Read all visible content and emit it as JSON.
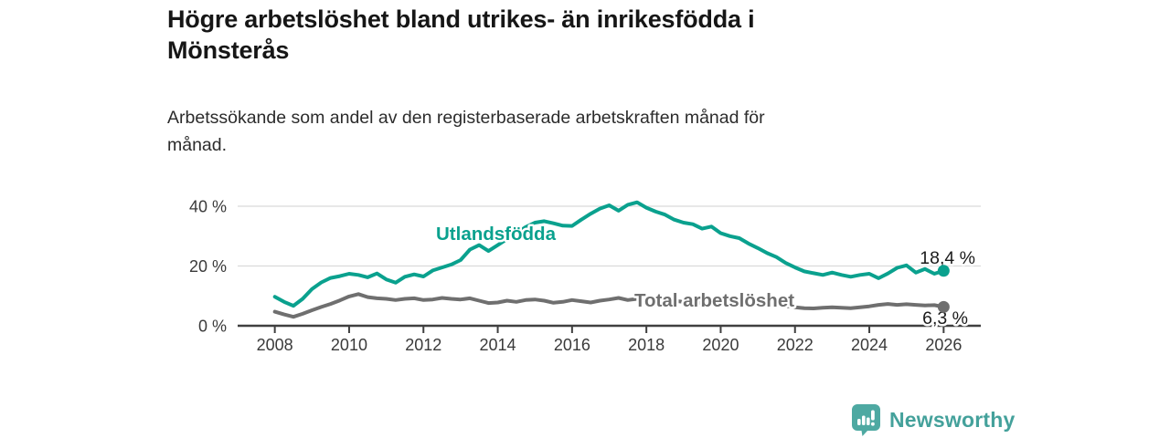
{
  "header": {
    "title": "Högre arbetslöshet bland utrikes- än inrikesfödda i Mönsterås",
    "title_lines": [
      "Högre arbetslöshet bland utrikes- än inrikesfödda i",
      "Mönsterås"
    ],
    "subtitle": "Arbetssökande som andel av den registerbaserade arbetskraften månad för månad.",
    "subtitle_lines": [
      "Arbetssökande som andel av den registerbaserade arbetskraften månad för",
      "månad."
    ]
  },
  "footer": {
    "brand": "Newsworthy",
    "logo_icon": "bar-chart-speech-bubble-icon",
    "logo_color": "#4ea9a2"
  },
  "colors": {
    "background": "#ffffff",
    "title_text": "#161616",
    "subtitle_text": "#2c2c2c",
    "axis_text": "#3a3a3a",
    "axis_line": "#3f3f3f",
    "gridline": "#dadada",
    "value_label_text": "#1b1b1b",
    "series_teal": "#0aa18e",
    "series_gray": "#6f6f6f"
  },
  "chart_data": {
    "type": "line",
    "title": "Högre arbetslöshet bland utrikes- än inrikesfödda i Mönsterås",
    "subtitle": "Arbetssökande som andel av den registerbaserade arbetskraften månad för månad.",
    "xlabel": "",
    "ylabel": "",
    "unit": "%",
    "xlim": [
      2007,
      2027
    ],
    "ylim": [
      0,
      44
    ],
    "grid": "horizontal gridlines at y ticks above 0; solid baseline axis at 0",
    "legend_position": "inline labels on lines",
    "x_ticks": [
      {
        "value": 2008,
        "label": "2008"
      },
      {
        "value": 2010,
        "label": "2010"
      },
      {
        "value": 2012,
        "label": "2012"
      },
      {
        "value": 2014,
        "label": "2014"
      },
      {
        "value": 2016,
        "label": "2016"
      },
      {
        "value": 2018,
        "label": "2018"
      },
      {
        "value": 2020,
        "label": "2020"
      },
      {
        "value": 2022,
        "label": "2022"
      },
      {
        "value": 2024,
        "label": "2024"
      },
      {
        "value": 2026,
        "label": "2026"
      }
    ],
    "y_ticks": [
      {
        "value": 0,
        "label": "0 %"
      },
      {
        "value": 20,
        "label": "20 %"
      },
      {
        "value": 40,
        "label": "40 %"
      }
    ],
    "x_start": 2008,
    "x_step": 0.25,
    "x_end": 2026,
    "x_note": "decimal years, quarterly estimates read from monthly curve",
    "series": [
      {
        "name": "Utlandsfödda",
        "color": "#0aa18e",
        "end_value": 18.4,
        "end_label": "18,4 %",
        "values": [
          9.7,
          8.0,
          6.7,
          9.0,
          12.3,
          14.5,
          16.0,
          16.6,
          17.4,
          17.0,
          16.2,
          17.5,
          15.5,
          14.4,
          16.4,
          17.2,
          16.5,
          18.5,
          19.5,
          20.5,
          22.0,
          25.5,
          27.0,
          25.0,
          27.0,
          29.0,
          31.0,
          33.0,
          34.5,
          35.0,
          34.3,
          33.5,
          33.4,
          35.5,
          37.5,
          39.2,
          40.3,
          38.5,
          40.5,
          41.3,
          39.5,
          38.2,
          37.2,
          35.5,
          34.5,
          34.0,
          32.5,
          33.2,
          31.0,
          30.0,
          29.3,
          27.5,
          26.0,
          24.3,
          23.0,
          21.0,
          19.5,
          18.2,
          17.6,
          17.0,
          17.8,
          17.0,
          16.4,
          17.0,
          17.4,
          15.9,
          17.5,
          19.4,
          20.2,
          17.8,
          19.0,
          17.4,
          18.4
        ]
      },
      {
        "name": "Total arbetslöshet",
        "color": "#6f6f6f",
        "end_value": 6.3,
        "end_label": "6,3 %",
        "values": [
          4.7,
          3.8,
          3.0,
          4.0,
          5.2,
          6.3,
          7.3,
          8.5,
          9.8,
          10.6,
          9.6,
          9.2,
          9.0,
          8.6,
          9.0,
          9.2,
          8.6,
          8.8,
          9.3,
          9.0,
          8.8,
          9.2,
          8.4,
          7.6,
          7.8,
          8.4,
          8.0,
          8.6,
          8.8,
          8.4,
          7.7,
          8.0,
          8.6,
          8.2,
          7.8,
          8.4,
          8.8,
          9.3,
          8.6,
          9.0,
          8.8,
          8.4,
          8.0,
          8.3,
          8.0,
          7.8,
          7.6,
          8.0,
          8.2,
          8.6,
          8.4,
          8.0,
          7.8,
          7.4,
          7.0,
          6.6,
          6.2,
          5.9,
          5.8,
          6.0,
          6.2,
          6.0,
          5.9,
          6.2,
          6.5,
          7.0,
          7.3,
          7.0,
          7.2,
          7.0,
          6.8,
          6.9,
          6.3
        ]
      }
    ]
  }
}
